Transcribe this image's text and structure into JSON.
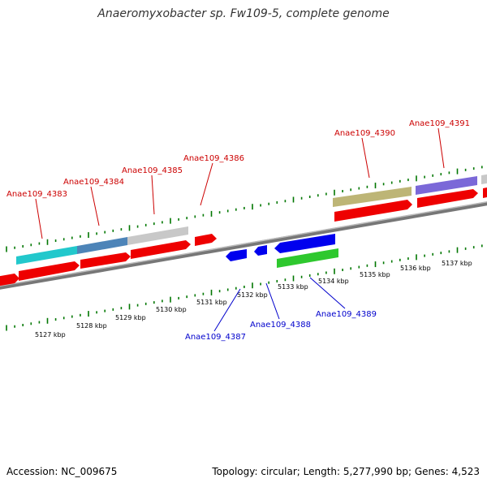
{
  "title": "Anaeromyxobacter sp. Fw109-5, complete genome",
  "footer": {
    "accession": "Accession: NC_009675",
    "summary": "Topology: circular; Length: 5,277,990 bp; Genes: 4,523"
  },
  "colors": {
    "forward_label": "#cc0000",
    "reverse_label": "#0000cc",
    "cds_red": "#ee0000",
    "cds_blue": "#0000ee",
    "tick_green": "#007700",
    "backbone": "#888888"
  },
  "scale": {
    "unit": "kbp",
    "ticks": [
      "5127 kbp",
      "5128 kbp",
      "5129 kbp",
      "5130 kbp",
      "5131 kbp",
      "5132 kbp",
      "5133 kbp",
      "5134 kbp",
      "5135 kbp",
      "5136 kbp",
      "5137 kbp"
    ]
  },
  "forward_genes": [
    {
      "label": "Anae109_4383"
    },
    {
      "label": "Anae109_4384"
    },
    {
      "label": "Anae109_4385"
    },
    {
      "label": "Anae109_4386"
    },
    {
      "label": "Anae109_4390"
    },
    {
      "label": "Anae109_4391"
    }
  ],
  "reverse_genes": [
    {
      "label": "Anae109_4387"
    },
    {
      "label": "Anae109_4388"
    },
    {
      "label": "Anae109_4389"
    }
  ]
}
